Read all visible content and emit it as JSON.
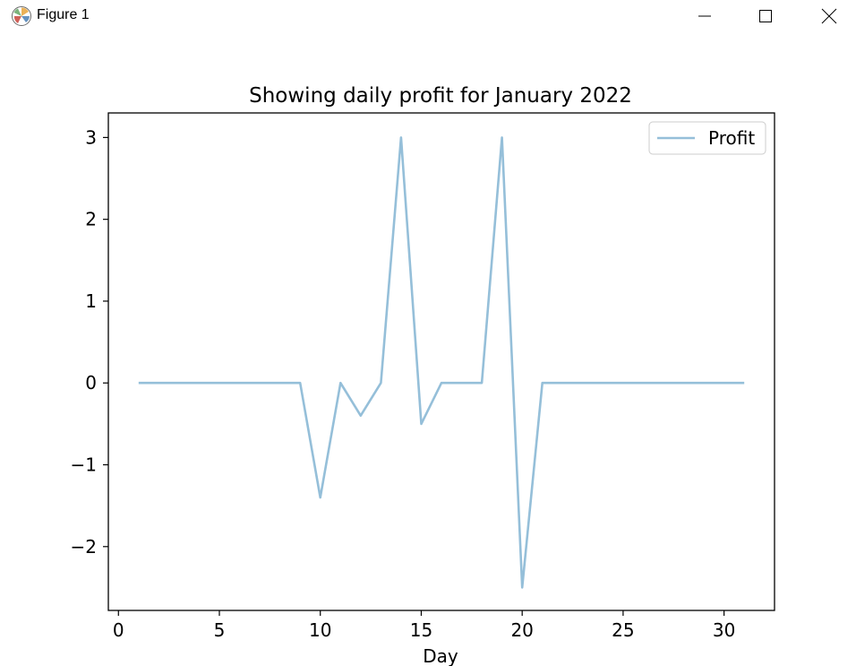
{
  "window": {
    "title": "Figure 1",
    "icons": {
      "app": "matplotlib-icon",
      "minimize": "minimize-icon",
      "maximize": "maximize-icon",
      "close": "close-icon"
    }
  },
  "chart_data": {
    "type": "line",
    "title": "Showing daily profit for January 2022",
    "xlabel": "Day",
    "ylabel": "",
    "xlim": [
      -0.5,
      32.5
    ],
    "ylim": [
      -2.78,
      3.3
    ],
    "xticks": [
      0,
      5,
      10,
      15,
      20,
      25,
      30
    ],
    "yticks": [
      -2,
      -1,
      0,
      1,
      2,
      3
    ],
    "ytick_labels": [
      "−2",
      "−1",
      "0",
      "1",
      "2",
      "3"
    ],
    "grid": false,
    "legend": {
      "position": "upper right",
      "entries": [
        "Profit"
      ]
    },
    "series": [
      {
        "name": "Profit",
        "color": "#95bfd9",
        "x": [
          1,
          2,
          3,
          4,
          5,
          6,
          7,
          8,
          9,
          10,
          11,
          12,
          13,
          14,
          15,
          16,
          17,
          18,
          19,
          20,
          21,
          22,
          23,
          24,
          25,
          26,
          27,
          28,
          29,
          30,
          31
        ],
        "y": [
          0,
          0,
          0,
          0,
          0,
          0,
          0,
          0,
          0,
          -1.4,
          0,
          -0.4,
          0,
          3,
          -0.5,
          0,
          0,
          0,
          3,
          -2.5,
          0,
          0,
          0,
          0,
          0,
          0,
          0,
          0,
          0,
          0,
          0
        ]
      }
    ]
  }
}
